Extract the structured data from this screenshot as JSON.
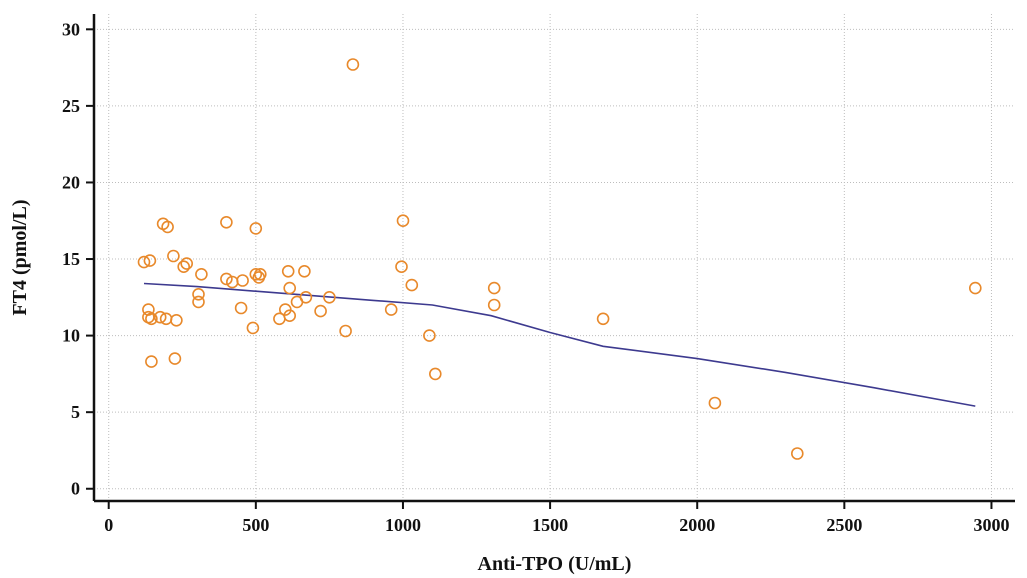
{
  "chart_data": {
    "type": "scatter",
    "title": "",
    "xlabel": "Anti-TPO (U/mL)",
    "ylabel": "FT4 (pmol/L)",
    "xlim": [
      -50,
      3080
    ],
    "ylim": [
      -0.8,
      31
    ],
    "xticks": [
      0,
      500,
      1000,
      1500,
      2000,
      2500,
      3000
    ],
    "yticks": [
      0,
      5,
      10,
      15,
      20,
      25,
      30
    ],
    "grid": true,
    "legend": "none",
    "colors": {
      "points": "#e8892b",
      "line": "#3d3a8f",
      "axis": "#111111",
      "grid": "#bdbdbd"
    },
    "series": [
      {
        "type": "scatter",
        "x": [
          120,
          135,
          135,
          140,
          145,
          145,
          175,
          185,
          195,
          200,
          220,
          225,
          230,
          255,
          265,
          305,
          305,
          315,
          400,
          400,
          420,
          450,
          455,
          490,
          500,
          500,
          510,
          515,
          580,
          600,
          610,
          615,
          615,
          640,
          665,
          670,
          720,
          750,
          805,
          830,
          960,
          995,
          1000,
          1030,
          1090,
          1110,
          1310,
          1310,
          1680,
          2060,
          2340,
          2945
        ],
        "y": [
          14.8,
          11.2,
          11.7,
          14.9,
          11.1,
          8.3,
          11.2,
          17.3,
          11.1,
          17.1,
          15.2,
          8.5,
          11.0,
          14.5,
          14.7,
          12.2,
          12.7,
          14.0,
          17.4,
          13.7,
          13.5,
          11.8,
          13.6,
          10.5,
          17.0,
          14.0,
          13.8,
          14.0,
          11.1,
          11.7,
          14.2,
          13.1,
          11.3,
          12.2,
          14.2,
          12.5,
          11.6,
          12.5,
          10.3,
          27.7,
          11.7,
          14.5,
          17.5,
          13.3,
          10.0,
          7.5,
          12.0,
          13.1,
          11.1,
          5.6,
          2.3,
          13.1
        ]
      },
      {
        "type": "line",
        "x": [
          120,
          300,
          500,
          700,
          900,
          1100,
          1300,
          1500,
          1680,
          2000,
          2300,
          2600,
          2945
        ],
        "y": [
          13.4,
          13.2,
          12.9,
          12.6,
          12.3,
          12.0,
          11.3,
          10.2,
          9.3,
          8.5,
          7.6,
          6.6,
          5.4
        ]
      }
    ]
  }
}
